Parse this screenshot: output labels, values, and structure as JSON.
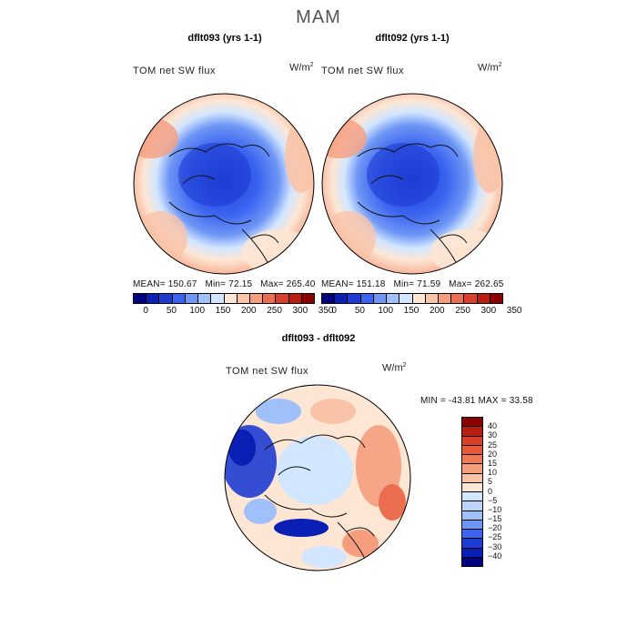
{
  "title": "MAM",
  "panels": [
    {
      "title": "dflt093 (yrs 1-1)",
      "variable": "TOM net SW flux",
      "unit_base": "W/m",
      "unit_exp": "2",
      "mean_label": "MEAN=",
      "mean": "150.67",
      "min_label": "Min=",
      "min": "72.15",
      "max_label": "Max=",
      "max": "265.40"
    },
    {
      "title": "dflt092 (yrs 1-1)",
      "variable": "TOM net SW flux",
      "unit_base": "W/m",
      "unit_exp": "2",
      "mean_label": "MEAN=",
      "mean": "151.18",
      "min_label": "Min=",
      "min": "71.59",
      "max_label": "Max=",
      "max": "262.65"
    }
  ],
  "abs_colorbar": {
    "colors": [
      "#000080",
      "#0a1fb4",
      "#1e3cd2",
      "#3c64f0",
      "#6e96f5",
      "#a0c0fa",
      "#d2e6ff",
      "#fde6d4",
      "#f9c3a7",
      "#f59e7e",
      "#ec6e50",
      "#d8402b",
      "#b81e10",
      "#8b0000"
    ],
    "ticks": [
      "0",
      "50",
      "100",
      "150",
      "200",
      "250",
      "300",
      "350"
    ]
  },
  "diff_panel": {
    "title": "dflt093 - dflt092",
    "variable": "TOM net SW flux",
    "unit_base": "W/m",
    "unit_exp": "2",
    "stats": "MIN = -43.81 MAX =  33.58"
  },
  "diff_colorbar": {
    "colors_top_to_bottom": [
      "#8b0000",
      "#b81e10",
      "#d8402b",
      "#e8583a",
      "#f07a58",
      "#f59e7e",
      "#f9c3a7",
      "#fde6d4",
      "#d2e6ff",
      "#bcd4fa",
      "#a0c0fa",
      "#6e96f5",
      "#3c64f0",
      "#1e3cd2",
      "#0a1fb4",
      "#000080"
    ],
    "ticks": [
      "40",
      "30",
      "25",
      "20",
      "15",
      "10",
      "5",
      "0",
      "−5",
      "−10",
      "−15",
      "−20",
      "−25",
      "−30",
      "−40"
    ]
  }
}
